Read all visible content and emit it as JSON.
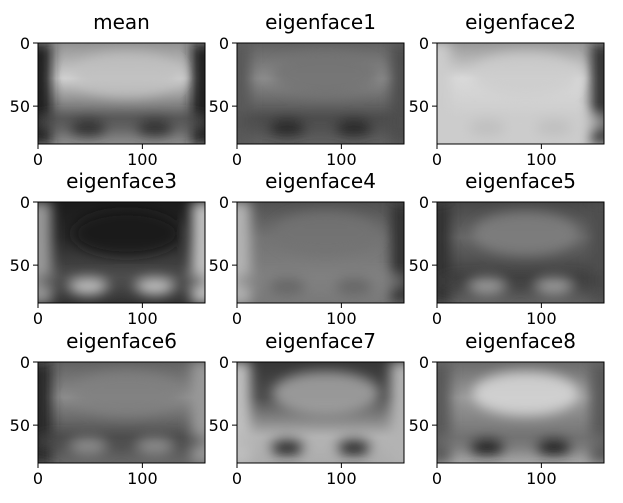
{
  "chart_data": [
    {
      "type": "heatmap",
      "title": "mean",
      "colormap": "gray",
      "xlim": [
        0,
        160
      ],
      "ylim": [
        80,
        0
      ],
      "xticks": [
        0,
        100
      ],
      "yticks": [
        0,
        50
      ],
      "features": {
        "top": 0.82,
        "brow": 0.35,
        "eyes": 0.18,
        "left": 0.1,
        "right": 0.1,
        "center": 0.75
      }
    },
    {
      "type": "heatmap",
      "title": "eigenface1",
      "colormap": "gray",
      "xlim": [
        0,
        160
      ],
      "ylim": [
        80,
        0
      ],
      "xticks": [
        0,
        100
      ],
      "yticks": [
        0,
        50
      ],
      "features": {
        "top": 0.55,
        "brow": 0.3,
        "eyes": 0.15,
        "left": 0.35,
        "right": 0.3,
        "center": 0.45
      }
    },
    {
      "type": "heatmap",
      "title": "eigenface2",
      "colormap": "gray",
      "xlim": [
        0,
        160
      ],
      "ylim": [
        80,
        0
      ],
      "xticks": [
        0,
        100
      ],
      "yticks": [
        0,
        50
      ],
      "features": {
        "top": 0.85,
        "brow": 0.8,
        "eyes": 0.75,
        "left": 0.8,
        "right": 0.2,
        "center": 0.8
      }
    },
    {
      "type": "heatmap",
      "title": "eigenface3",
      "colormap": "gray",
      "xlim": [
        0,
        160
      ],
      "ylim": [
        80,
        0
      ],
      "xticks": [
        0,
        100
      ],
      "yticks": [
        0,
        50
      ],
      "features": {
        "top": 0.15,
        "brow": 0.3,
        "eyes": 0.75,
        "left": 0.6,
        "right": 0.75,
        "center": 0.1
      }
    },
    {
      "type": "heatmap",
      "title": "eigenface4",
      "colormap": "gray",
      "xlim": [
        0,
        160
      ],
      "ylim": [
        80,
        0
      ],
      "xticks": [
        0,
        100
      ],
      "yticks": [
        0,
        50
      ],
      "features": {
        "top": 0.45,
        "brow": 0.5,
        "eyes": 0.4,
        "left": 0.7,
        "right": 0.2,
        "center": 0.45
      }
    },
    {
      "type": "heatmap",
      "title": "eigenface5",
      "colormap": "gray",
      "xlim": [
        0,
        160
      ],
      "ylim": [
        80,
        0
      ],
      "xticks": [
        0,
        100
      ],
      "yticks": [
        0,
        50
      ],
      "features": {
        "top": 0.4,
        "brow": 0.25,
        "eyes": 0.6,
        "left": 0.2,
        "right": 0.3,
        "center": 0.5
      }
    },
    {
      "type": "heatmap",
      "title": "eigenface6",
      "colormap": "gray",
      "xlim": [
        0,
        160
      ],
      "ylim": [
        80,
        0
      ],
      "xticks": [
        0,
        100
      ],
      "yticks": [
        0,
        50
      ],
      "features": {
        "top": 0.55,
        "brow": 0.3,
        "eyes": 0.55,
        "left": 0.15,
        "right": 0.6,
        "center": 0.5
      }
    },
    {
      "type": "heatmap",
      "title": "eigenface7",
      "colormap": "gray",
      "xlim": [
        0,
        160
      ],
      "ylim": [
        80,
        0
      ],
      "xticks": [
        0,
        100
      ],
      "yticks": [
        0,
        50
      ],
      "features": {
        "top": 0.3,
        "brow": 0.7,
        "eyes": 0.1,
        "left": 0.75,
        "right": 0.7,
        "center": 0.65
      }
    },
    {
      "type": "heatmap",
      "title": "eigenface8",
      "colormap": "gray",
      "xlim": [
        0,
        160
      ],
      "ylim": [
        80,
        0
      ],
      "xticks": [
        0,
        100
      ],
      "yticks": [
        0,
        50
      ],
      "features": {
        "top": 0.6,
        "brow": 0.45,
        "eyes": 0.1,
        "left": 0.35,
        "right": 0.35,
        "center": 0.85
      }
    }
  ]
}
